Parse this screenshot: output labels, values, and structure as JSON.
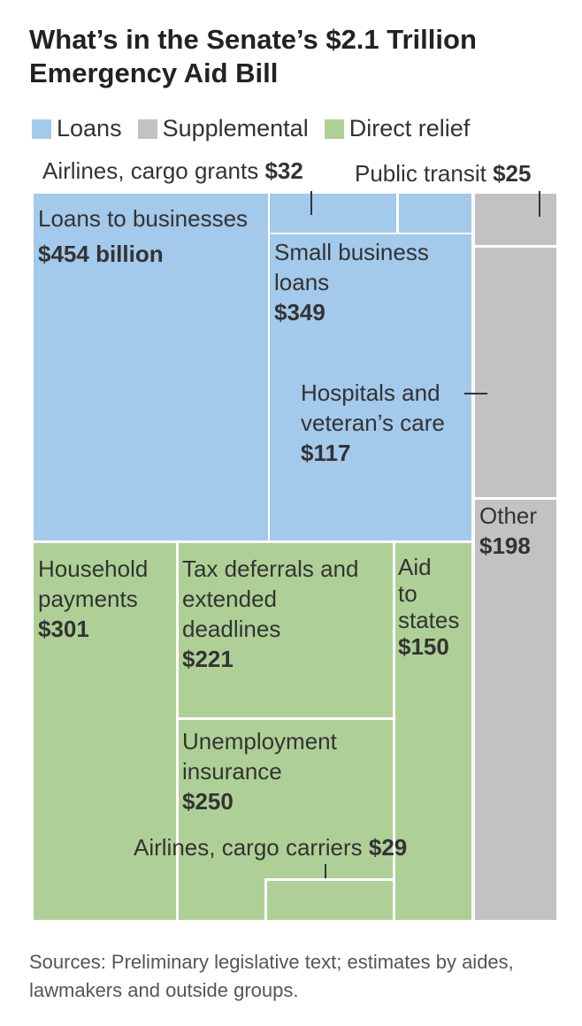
{
  "title": "What’s in the Senate’s $2.1 Trillion Emergency Aid Bill",
  "legend": [
    {
      "label": "Loans",
      "color": "#a3c9eb"
    },
    {
      "label": "Supplemental",
      "color": "#c2c2c2"
    },
    {
      "label": "Direct relief",
      "color": "#aed096"
    }
  ],
  "chart_data": {
    "type": "treemap",
    "title": "What’s in the Senate’s $2.1 Trillion Emergency Aid Bill",
    "units": "billion dollars",
    "items": [
      {
        "name": "Loans to businesses",
        "value_label": "$454 billion",
        "value": 454,
        "category": "Loans"
      },
      {
        "name": "Airlines, cargo grants",
        "value_label": "$32",
        "value": 32,
        "category": "Loans"
      },
      {
        "name": "Small business loans",
        "value_label": "$349",
        "value": 349,
        "category": "Loans"
      },
      {
        "name": "Public transit",
        "value_label": "$25",
        "value": 25,
        "category": "Supplemental"
      },
      {
        "name": "Hospitals and veteran’s care",
        "value_label": "$117",
        "value": 117,
        "category": "Supplemental"
      },
      {
        "name": "Other",
        "value_label": "$198",
        "value": 198,
        "category": "Supplemental"
      },
      {
        "name": "Household payments",
        "value_label": "$301",
        "value": 301,
        "category": "Direct relief"
      },
      {
        "name": "Tax deferrals and extended deadlines",
        "value_label": "$221",
        "value": 221,
        "category": "Direct relief"
      },
      {
        "name": "Aid to states",
        "value_label": "$150",
        "value": 150,
        "category": "Direct relief"
      },
      {
        "name": "Unemployment insurance",
        "value_label": "$250",
        "value": 250,
        "category": "Direct relief"
      },
      {
        "name": "Airlines, cargo carriers",
        "value_label": "$29",
        "value": 29,
        "category": "Direct relief"
      }
    ]
  },
  "labels": {
    "loans_biz": {
      "name": "Loans to businesses",
      "value": "$454 billion"
    },
    "small_biz": {
      "name1": "Small business",
      "name2": "loans",
      "value": "$349"
    },
    "hospitals": {
      "name1": "Hospitals and",
      "name2": "veteran’s care",
      "value": "$117"
    },
    "other": {
      "name": "Other",
      "value": "$198"
    },
    "household": {
      "name1": "Household",
      "name2": "payments",
      "value": "$301"
    },
    "tax": {
      "name1": "Tax deferrals and",
      "name2": "extended",
      "name3": "deadlines",
      "value": "$221"
    },
    "aid_states": {
      "name1": "Aid",
      "name2": "to",
      "name3": "states",
      "value": "$150"
    },
    "unemployment": {
      "name1": "Unemployment",
      "name2": "insurance",
      "value": "$250"
    },
    "airlines_grants": {
      "name": "Airlines, cargo grants",
      "value": "$32"
    },
    "public_transit": {
      "name": "Public transit",
      "value": "$25"
    },
    "airlines_carriers": {
      "name": "Airlines, cargo carriers",
      "value": "$29"
    }
  },
  "source": "Sources: Preliminary legislative text; estimates by aides, lawmakers and outside groups."
}
